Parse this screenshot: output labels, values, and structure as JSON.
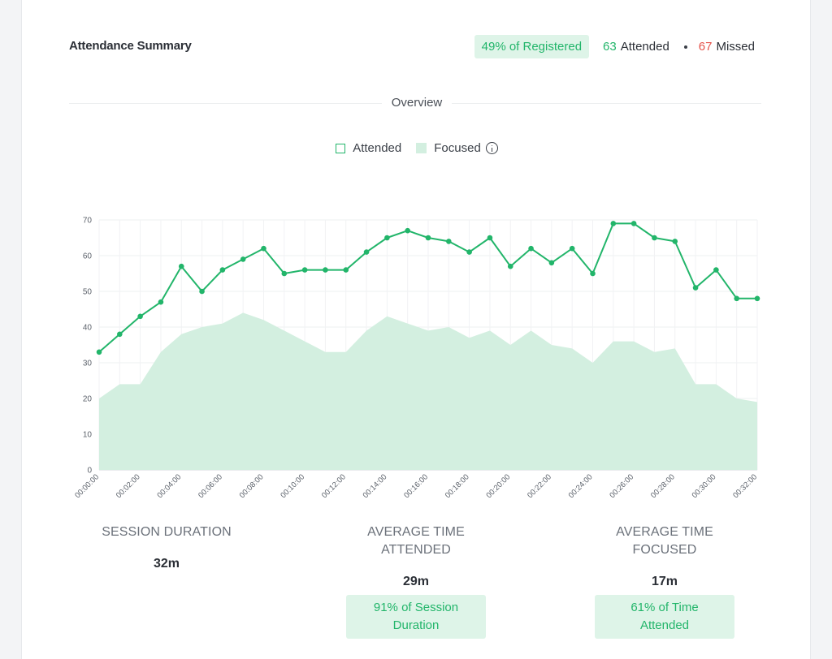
{
  "header": {
    "title": "Attendance Summary",
    "registered_badge": "49% of Registered",
    "attended_count": "63",
    "attended_label": "Attended",
    "missed_count": "67",
    "missed_label": "Missed"
  },
  "section_title": "Overview",
  "legend": {
    "attended": "Attended",
    "focused": "Focused"
  },
  "colors": {
    "attended_line": "#22b56a",
    "focused_area": "#d3efe0",
    "missed": "#e5534b"
  },
  "chart_data": {
    "type": "line",
    "x": [
      "00:00:00",
      "00:01:00",
      "00:02:00",
      "00:03:00",
      "00:04:00",
      "00:05:00",
      "00:06:00",
      "00:07:00",
      "00:08:00",
      "00:09:00",
      "00:10:00",
      "00:11:00",
      "00:12:00",
      "00:13:00",
      "00:14:00",
      "00:15:00",
      "00:16:00",
      "00:17:00",
      "00:18:00",
      "00:19:00",
      "00:20:00",
      "00:21:00",
      "00:22:00",
      "00:23:00",
      "00:24:00",
      "00:25:00",
      "00:26:00",
      "00:27:00",
      "00:28:00",
      "00:29:00",
      "00:30:00",
      "00:31:00",
      "00:32:00"
    ],
    "x_tick_labels": [
      "00:00:00",
      "00:02:00",
      "00:04:00",
      "00:06:00",
      "00:08:00",
      "00:10:00",
      "00:12:00",
      "00:14:00",
      "00:16:00",
      "00:18:00",
      "00:20:00",
      "00:22:00",
      "00:24:00",
      "00:26:00",
      "00:28:00",
      "00:30:00",
      "00:32:00"
    ],
    "series": [
      {
        "name": "Attended",
        "type": "line",
        "values": [
          33,
          38,
          43,
          47,
          57,
          50,
          56,
          59,
          62,
          55,
          56,
          56,
          56,
          61,
          65,
          67,
          65,
          64,
          61,
          65,
          57,
          62,
          58,
          62,
          55,
          69,
          69,
          65,
          64,
          51,
          56,
          48,
          48
        ]
      },
      {
        "name": "Focused",
        "type": "area",
        "values": [
          20,
          24,
          24,
          33,
          38,
          40,
          41,
          44,
          42,
          39,
          36,
          33,
          33,
          39,
          43,
          41,
          39,
          40,
          37,
          39,
          35,
          39,
          35,
          34,
          30,
          36,
          36,
          33,
          34,
          24,
          24,
          20,
          19
        ]
      }
    ],
    "ylim": [
      0,
      70
    ],
    "y_ticks": [
      0,
      10,
      20,
      30,
      40,
      50,
      60,
      70
    ],
    "grid": true,
    "legend": "top-center"
  },
  "stats": [
    {
      "label": "Session Duration",
      "value": "32m"
    },
    {
      "label_line1": "Average Time",
      "label_line2": "Attended",
      "value": "29m",
      "badge_line1": "91% of Session",
      "badge_line2": "Duration"
    },
    {
      "label_line1": "Average Time",
      "label_line2": "Focused",
      "value": "17m",
      "badge_line1": "61% of Time",
      "badge_line2": "Attended"
    }
  ]
}
